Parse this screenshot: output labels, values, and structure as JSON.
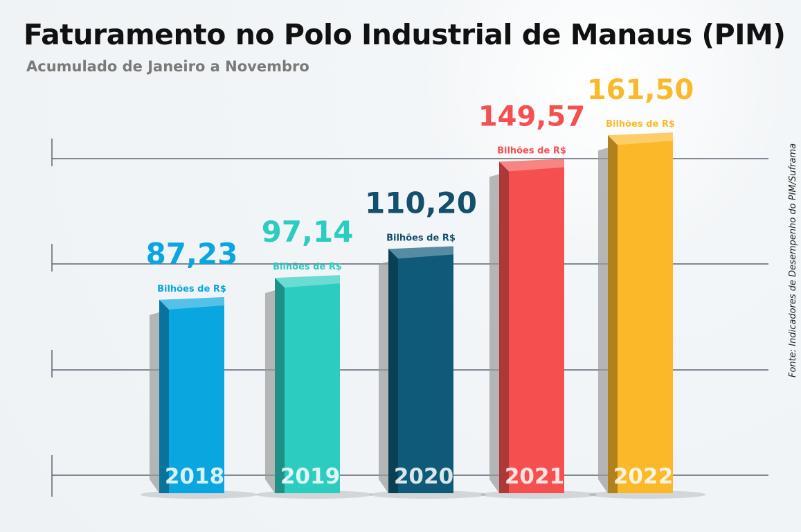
{
  "title": "Faturamento no Polo Industrial de Manaus (PIM)",
  "subtitle": "Acumulado de Janeiro a Novembro",
  "source": "Fonte: Indicadores de Desempenho do PIM/Suframa",
  "chart_data": {
    "type": "bar",
    "categories": [
      "2018",
      "2019",
      "2020",
      "2021",
      "2022"
    ],
    "values": [
      87.23,
      97.14,
      110.2,
      149.57,
      161.5
    ],
    "value_labels": [
      "87,23",
      "97,14",
      "110,20",
      "149,57",
      "161,50"
    ],
    "unit_label": "Bilhões de R$",
    "colors": [
      "#0aa6e0",
      "#2ccdc0",
      "#0e5a78",
      "#f5504f",
      "#fbb829"
    ],
    "label_colors": [
      "#0aa6e0",
      "#2ccdc0",
      "#14506b",
      "#f5504f",
      "#fbb829"
    ],
    "ylim": [
      0,
      165
    ],
    "grid": true,
    "legend": "none"
  }
}
